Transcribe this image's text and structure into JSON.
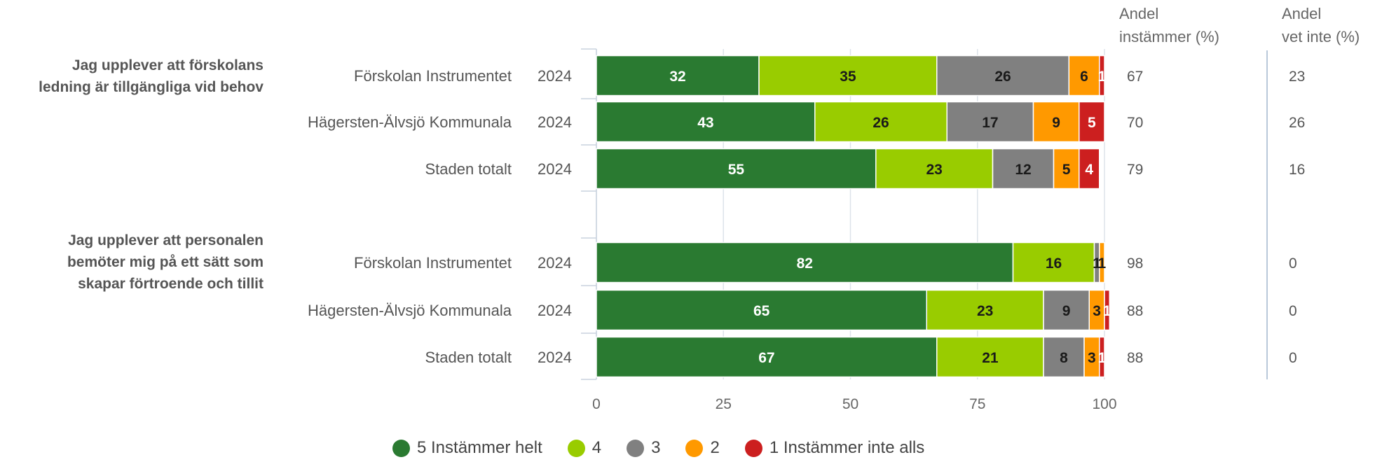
{
  "chart_data": {
    "type": "bar",
    "orientation": "horizontal",
    "stacked": true,
    "xlim": [
      0,
      100
    ],
    "xticks": [
      "0",
      "25",
      "50",
      "75",
      "100"
    ],
    "grid": true,
    "legend_position": "bottom",
    "columns": [
      {
        "title_line1": "Andel",
        "title_line2": "instämmer (%)"
      },
      {
        "title_line1": "Andel",
        "title_line2": "vet inte (%)"
      }
    ],
    "series": [
      {
        "name": "5 Instämmer helt",
        "color": "#2a7a31",
        "label_color": "#ffffff"
      },
      {
        "name": "4",
        "color": "#99cc00",
        "label_color": "#1a1a1a"
      },
      {
        "name": "3",
        "color": "#808080",
        "label_color": "#1a1a1a"
      },
      {
        "name": "2",
        "color": "#ff9900",
        "label_color": "#1a1a1a"
      },
      {
        "name": "1 Instämmer inte alls",
        "color": "#cc1f1f",
        "label_color": "#ffffff"
      }
    ],
    "groups": [
      {
        "question_lines": [
          "Jag upplever att förskolans",
          "ledning är tillgängliga vid behov"
        ],
        "rows": [
          {
            "unit": "Förskolan Instrumentet",
            "year": "2024",
            "values": [
              32,
              35,
              26,
              6,
              1
            ],
            "andel_instammer": "67",
            "andel_vet_inte": "23"
          },
          {
            "unit": "Hägersten-Älvsjö Kommunala",
            "year": "2024",
            "values": [
              43,
              26,
              17,
              9,
              5
            ],
            "andel_instammer": "70",
            "andel_vet_inte": "26"
          },
          {
            "unit": "Staden totalt",
            "year": "2024",
            "values": [
              55,
              23,
              12,
              5,
              4
            ],
            "andel_instammer": "79",
            "andel_vet_inte": "16"
          }
        ]
      },
      {
        "question_lines": [
          "Jag upplever att personalen",
          "bemöter mig på ett sätt som",
          "skapar förtroende och tillit"
        ],
        "rows": [
          {
            "unit": "Förskolan Instrumentet",
            "year": "2024",
            "values": [
              82,
              16,
              1,
              1,
              0
            ],
            "andel_instammer": "98",
            "andel_vet_inte": "0"
          },
          {
            "unit": "Hägersten-Älvsjö Kommunala",
            "year": "2024",
            "values": [
              65,
              23,
              9,
              3,
              1
            ],
            "andel_instammer": "88",
            "andel_vet_inte": "0"
          },
          {
            "unit": "Staden totalt",
            "year": "2024",
            "values": [
              67,
              21,
              8,
              3,
              1
            ],
            "andel_instammer": "88",
            "andel_vet_inte": "0"
          }
        ]
      }
    ]
  }
}
